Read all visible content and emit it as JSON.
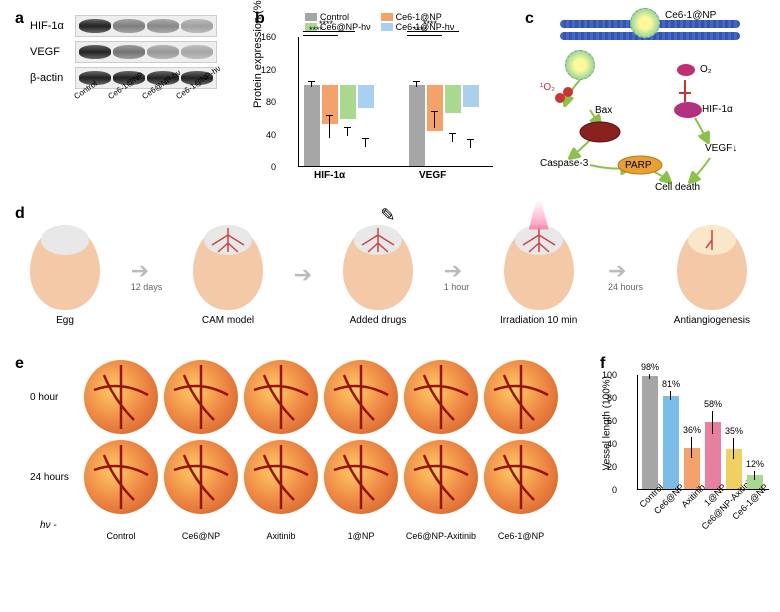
{
  "panels": {
    "a": "a",
    "b": "b",
    "c": "c",
    "d": "d",
    "e": "e",
    "f": "f"
  },
  "blot": {
    "rows": [
      "HIF-1α",
      "VEGF",
      "β-actin"
    ],
    "samples": [
      "Control",
      "Ce6-1@NP",
      "Ce6@NP-hν",
      "Ce6-1@NP-hν"
    ],
    "intensity": {
      "HIF-1α": [
        1.0,
        0.55,
        0.5,
        0.38
      ],
      "VEGF": [
        1.0,
        0.6,
        0.42,
        0.35
      ],
      "β-actin": [
        1.0,
        1.0,
        1.0,
        1.0
      ]
    }
  },
  "chartB": {
    "ylabel": "Protein expression (%)",
    "ylim": [
      0,
      160
    ],
    "ytick_step": 40,
    "groups": [
      "HIF-1α",
      "VEGF"
    ],
    "series": [
      {
        "name": "Control",
        "color": "#a6a6a6",
        "values": [
          100,
          100
        ],
        "err": [
          3,
          3
        ]
      },
      {
        "name": "Ce6-1@NP",
        "color": "#f4a26a",
        "values": [
          48,
          57
        ],
        "err": [
          13,
          10
        ]
      },
      {
        "name": "Ce6@NP-hν",
        "color": "#a8d98e",
        "values": [
          42,
          35
        ],
        "err": [
          5,
          5
        ]
      },
      {
        "name": "Ce6-1@NP-hν",
        "color": "#a9d0ef",
        "values": [
          28,
          27
        ],
        "err": [
          5,
          5
        ]
      }
    ],
    "significance": "****"
  },
  "diagramC": {
    "labels": {
      "np": "Ce6-1@NP",
      "o2singlet": "¹O₂",
      "o2": "O₂",
      "bax": "Bax",
      "hif": "HIF-1α",
      "casp": "Caspase-3",
      "parp": "PARP",
      "vegf": "VEGF↓",
      "death": "Cell death"
    },
    "colors": {
      "membrane": "#4466cc",
      "np_inner": "#fff89a",
      "np_outer": "#9dd89a",
      "o2singlet": "#c33",
      "o2": "#c03070",
      "hif": "#b23080",
      "mito": "#8b2020",
      "parp": "#e8a030",
      "arrow_path": "#8bc34a",
      "arrow_inhibit": "#d32f2f"
    }
  },
  "workflowD": {
    "egg_color": "#f4c9a8",
    "stages": [
      {
        "label": "Egg",
        "top_color": "#e8e8e8",
        "note": ""
      },
      {
        "label": "CAM model",
        "top_color": "#e8e8e8",
        "note": "12 days",
        "vessels": true
      },
      {
        "label": "Added drugs",
        "top_color": "#e8e8e8",
        "note": "",
        "vessels": true,
        "pipette": true
      },
      {
        "label": "Irradiation  10 min",
        "top_color": "#e8e8e8",
        "note": "1 hour",
        "vessels": true,
        "light": true
      },
      {
        "label": "Antiangiogenesis",
        "top_color": "#f8e7c8",
        "note": "24 hours",
        "vessels": "sparse"
      }
    ]
  },
  "camE": {
    "rows": [
      "0 hour",
      "24 hours"
    ],
    "columns": [
      "Control",
      "Ce6@NP",
      "Axitinib",
      "1@NP",
      "Ce6@NP-Axitinib",
      "Ce6-1@NP"
    ],
    "hv_prefix": "hν -"
  },
  "chartF": {
    "ylabel": "Vessel length (100%)",
    "ylim": [
      0,
      100
    ],
    "ytick_step": 20,
    "bars": [
      {
        "name": "Control",
        "value": 98,
        "label": "98%",
        "color": "#a6a6a6",
        "err": 2
      },
      {
        "name": "Ce6@NP",
        "value": 81,
        "label": "81%",
        "color": "#7bbce8",
        "err": 4
      },
      {
        "name": "Axitinib",
        "value": 36,
        "label": "36%",
        "color": "#f4a26a",
        "err": 9
      },
      {
        "name": "1@NP",
        "value": 58,
        "label": "58%",
        "color": "#e87fa0",
        "err": 10
      },
      {
        "name": "Ce6@NP-Axitinib",
        "value": 35,
        "label": "35%",
        "color": "#f0d060",
        "err": 9
      },
      {
        "name": "Ce6-1@NP",
        "value": 12,
        "label": "12%",
        "color": "#a8d98e",
        "err": 4
      }
    ]
  }
}
